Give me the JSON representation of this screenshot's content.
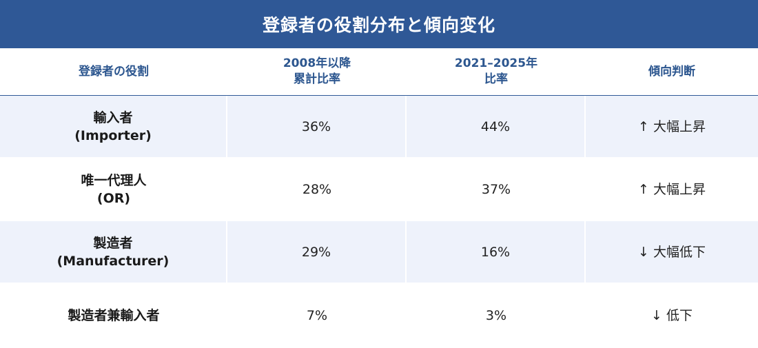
{
  "title": "登録者の役割分布と傾向変化",
  "headers": [
    {
      "line1": "登録者の役割",
      "line2": ""
    },
    {
      "line1": "2008年以降",
      "line2": "累計比率"
    },
    {
      "line1": "2021–2025年",
      "line2": "比率"
    },
    {
      "line1": "傾向判断",
      "line2": ""
    }
  ],
  "rows": [
    {
      "role_line1": "輸入者",
      "role_line2": "(Importer)",
      "cumulative": "36%",
      "recent": "44%",
      "arrow": "↑",
      "trend": "大幅上昇"
    },
    {
      "role_line1": "唯一代理人",
      "role_line2": "(OR)",
      "cumulative": "28%",
      "recent": "37%",
      "arrow": "↑",
      "trend": "大幅上昇"
    },
    {
      "role_line1": "製造者",
      "role_line2": "(Manufacturer)",
      "cumulative": "29%",
      "recent": "16%",
      "arrow": "↓",
      "trend": "大幅低下"
    },
    {
      "role_line1": "製造者兼輸入者",
      "role_line2": "",
      "cumulative": "7%",
      "recent": "3%",
      "arrow": "↓",
      "trend": "低下"
    }
  ],
  "colors": {
    "title_bg": "#2f5896",
    "header_text": "#2c568f",
    "row_shade": "#eef2fb"
  }
}
